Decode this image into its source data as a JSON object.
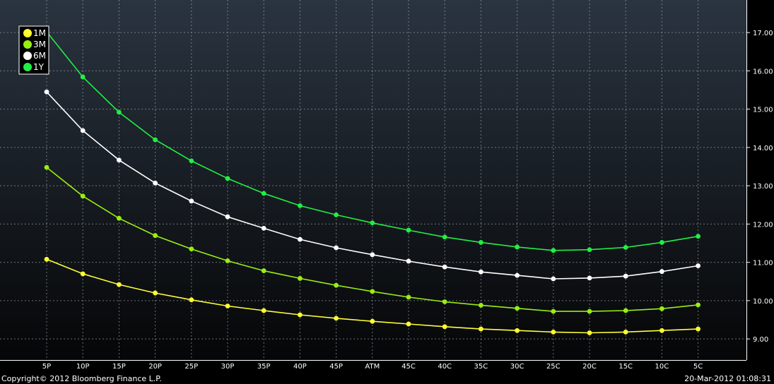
{
  "chart_data": {
    "type": "line",
    "categories": [
      "5P",
      "10P",
      "15P",
      "20P",
      "25P",
      "30P",
      "35P",
      "40P",
      "45P",
      "ATM",
      "45C",
      "40C",
      "35C",
      "30C",
      "25C",
      "20C",
      "15C",
      "10C",
      "5C"
    ],
    "series": [
      {
        "name": "1M",
        "color": "#ffff33",
        "values": [
          11.08,
          10.7,
          10.42,
          10.2,
          10.02,
          9.86,
          9.74,
          9.63,
          9.54,
          9.46,
          9.39,
          9.32,
          9.26,
          9.22,
          9.18,
          9.16,
          9.18,
          9.22,
          9.26
        ]
      },
      {
        "name": "3M",
        "color": "#99ee11",
        "values": [
          13.48,
          12.73,
          12.15,
          11.7,
          11.35,
          11.04,
          10.78,
          10.58,
          10.4,
          10.24,
          10.09,
          9.97,
          9.88,
          9.8,
          9.72,
          9.72,
          9.74,
          9.79,
          9.89
        ]
      },
      {
        "name": "6M",
        "color": "#ffffff",
        "values": [
          15.45,
          14.44,
          13.67,
          13.07,
          12.6,
          12.19,
          11.89,
          11.6,
          11.38,
          11.2,
          11.03,
          10.88,
          10.75,
          10.66,
          10.57,
          10.59,
          10.64,
          10.76,
          10.91
        ]
      },
      {
        "name": "1Y",
        "color": "#22ee44",
        "values": [
          17.02,
          15.84,
          14.92,
          14.2,
          13.65,
          13.19,
          12.8,
          12.48,
          12.24,
          12.03,
          11.84,
          11.66,
          11.52,
          11.4,
          11.31,
          11.33,
          11.39,
          11.52,
          11.68
        ]
      }
    ],
    "y_ticks": [
      "17.00",
      "16.00",
      "15.00",
      "14.00",
      "13.00",
      "12.00",
      "11.00",
      "10.00",
      "9.00"
    ],
    "ylim": [
      8.45,
      17.85
    ],
    "grid": true,
    "y_axis_side": "right",
    "legend_position": "top-left"
  },
  "footer": {
    "copyright": "Copyright© 2012 Bloomberg Finance L.P.",
    "timestamp": "20-Mar-2012 01:08:31"
  }
}
